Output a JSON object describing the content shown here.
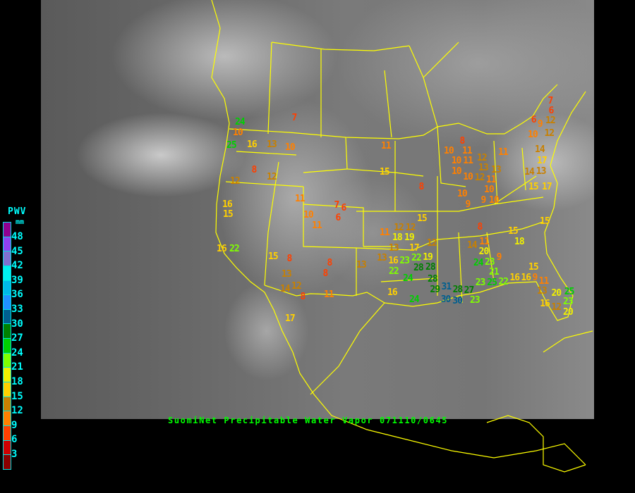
{
  "legend": {
    "title": "PWV",
    "unit": "mm",
    "ticks": [
      "48",
      "45",
      "42",
      "39",
      "36",
      "33",
      "30",
      "27",
      "24",
      "21",
      "18",
      "15",
      "12",
      "9",
      "6",
      "3"
    ],
    "bin_colors": [
      "#900090",
      "#9040f0",
      "#8070d0",
      "#00f0f0",
      "#00b8e8",
      "#2090ff",
      "#005f8f",
      "#008000",
      "#00d000",
      "#80ff00",
      "#f0f000",
      "#ffd000",
      "#c88000",
      "#ff8000",
      "#ff4000",
      "#d00000",
      "#8b0000"
    ]
  },
  "caption": "SuomiNet Precipitable Water Vapor 071110/0645",
  "border_color": "#ffff00",
  "stations": [
    {
      "value": "7"
    },
    {
      "value": "24"
    },
    {
      "value": "10"
    },
    {
      "value": "25"
    },
    {
      "value": "16"
    },
    {
      "value": "13"
    },
    {
      "value": "10"
    },
    {
      "value": "11"
    },
    {
      "value": "8"
    },
    {
      "value": "12"
    },
    {
      "value": "12"
    },
    {
      "value": "15"
    },
    {
      "value": "11"
    },
    {
      "value": "16"
    },
    {
      "value": "15"
    },
    {
      "value": "7"
    },
    {
      "value": "6"
    },
    {
      "value": "6"
    },
    {
      "value": "10"
    },
    {
      "value": "11"
    },
    {
      "value": "8"
    },
    {
      "value": "7"
    },
    {
      "value": "6"
    },
    {
      "value": "6"
    },
    {
      "value": "9"
    },
    {
      "value": "12"
    },
    {
      "value": "10"
    },
    {
      "value": "12"
    },
    {
      "value": "8"
    },
    {
      "value": "10"
    },
    {
      "value": "11"
    },
    {
      "value": "10"
    },
    {
      "value": "11"
    },
    {
      "value": "12"
    },
    {
      "value": "13"
    },
    {
      "value": "10"
    },
    {
      "value": "12"
    },
    {
      "value": "10"
    },
    {
      "value": "11"
    },
    {
      "value": "11"
    },
    {
      "value": "13"
    },
    {
      "value": "14"
    },
    {
      "value": "17"
    },
    {
      "value": "13"
    },
    {
      "value": "14"
    },
    {
      "value": "15"
    },
    {
      "value": "17"
    },
    {
      "value": "10"
    },
    {
      "value": "9"
    },
    {
      "value": "10"
    },
    {
      "value": "10"
    },
    {
      "value": "9"
    },
    {
      "value": "15"
    },
    {
      "value": "15"
    },
    {
      "value": "8"
    },
    {
      "value": "15"
    },
    {
      "value": "18"
    },
    {
      "value": "11"
    },
    {
      "value": "12"
    },
    {
      "value": "12"
    },
    {
      "value": "13"
    },
    {
      "value": "18"
    },
    {
      "value": "19"
    },
    {
      "value": "17"
    },
    {
      "value": "12"
    },
    {
      "value": "14"
    },
    {
      "value": "11"
    },
    {
      "value": "20"
    },
    {
      "value": "9"
    },
    {
      "value": "13"
    },
    {
      "value": "16"
    },
    {
      "value": "23"
    },
    {
      "value": "22"
    },
    {
      "value": "19"
    },
    {
      "value": "24"
    },
    {
      "value": "23"
    },
    {
      "value": "21"
    },
    {
      "value": "28"
    },
    {
      "value": "28"
    },
    {
      "value": "22"
    },
    {
      "value": "24"
    },
    {
      "value": "28"
    },
    {
      "value": "15"
    },
    {
      "value": "16"
    },
    {
      "value": "16"
    },
    {
      "value": "9"
    },
    {
      "value": "11"
    },
    {
      "value": "23"
    },
    {
      "value": "25"
    },
    {
      "value": "22"
    },
    {
      "value": "16"
    },
    {
      "value": "29"
    },
    {
      "value": "31"
    },
    {
      "value": "30"
    },
    {
      "value": "30"
    },
    {
      "value": "28"
    },
    {
      "value": "27"
    },
    {
      "value": "13"
    },
    {
      "value": "20"
    },
    {
      "value": "25"
    },
    {
      "value": "23"
    },
    {
      "value": "23"
    },
    {
      "value": "24"
    },
    {
      "value": "16"
    },
    {
      "value": "12"
    },
    {
      "value": "20"
    },
    {
      "value": "16"
    },
    {
      "value": "22"
    },
    {
      "value": "15"
    },
    {
      "value": "8"
    },
    {
      "value": "8"
    },
    {
      "value": "8"
    },
    {
      "value": "13"
    },
    {
      "value": "13"
    },
    {
      "value": "14"
    },
    {
      "value": "12"
    },
    {
      "value": "8"
    },
    {
      "value": "11"
    },
    {
      "value": "17"
    }
  ]
}
